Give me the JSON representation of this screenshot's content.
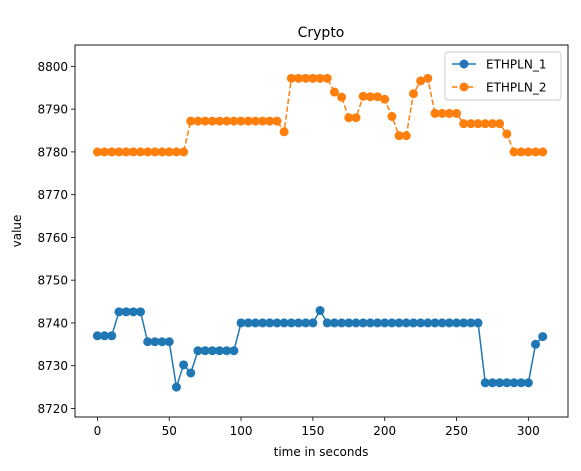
{
  "chart_data": {
    "type": "line",
    "title": "Crypto",
    "xlabel": "time in seconds",
    "ylabel": "value",
    "xlim": [
      -15.6,
      327.6
    ],
    "ylim": [
      8718,
      8805
    ],
    "x_ticks": [
      0,
      50,
      100,
      150,
      200,
      250,
      300
    ],
    "y_ticks": [
      8720,
      8730,
      8740,
      8750,
      8760,
      8770,
      8780,
      8790,
      8800
    ],
    "grid": false,
    "legend_position": "top-right",
    "series": [
      {
        "name": "ETHPLN_1",
        "color": "#1f77b4",
        "line_style": "solid",
        "marker": "circle",
        "x": [
          0,
          5,
          10,
          15,
          20,
          25,
          30,
          35,
          40,
          45,
          50,
          55,
          60,
          65,
          70,
          75,
          80,
          85,
          90,
          95,
          100,
          105,
          110,
          115,
          120,
          125,
          130,
          135,
          140,
          145,
          150,
          155,
          160,
          165,
          170,
          175,
          180,
          185,
          190,
          195,
          200,
          205,
          210,
          215,
          220,
          225,
          230,
          235,
          240,
          245,
          250,
          255,
          260,
          265,
          270,
          275,
          280,
          285,
          290,
          295,
          300,
          305,
          310
        ],
        "y": [
          8737,
          8737,
          8737,
          8742.6,
          8742.6,
          8742.6,
          8742.6,
          8735.6,
          8735.6,
          8735.6,
          8735.6,
          8725,
          8730.2,
          8728.3,
          8733.5,
          8733.5,
          8733.5,
          8733.5,
          8733.5,
          8733.5,
          8740,
          8740,
          8740,
          8740,
          8740,
          8740,
          8740,
          8740,
          8740,
          8740,
          8740,
          8742.9,
          8740,
          8740,
          8740,
          8740,
          8740,
          8740,
          8740,
          8740,
          8740,
          8740,
          8740,
          8740,
          8740,
          8740,
          8740,
          8740,
          8740,
          8740,
          8740,
          8740,
          8740,
          8740,
          8726,
          8726,
          8726,
          8726,
          8726,
          8726,
          8726,
          8735,
          8736.8
        ]
      },
      {
        "name": "ETHPLN_2",
        "color": "#ff7f0e",
        "line_style": "dashed",
        "marker": "circle",
        "x": [
          0,
          5,
          10,
          15,
          20,
          25,
          30,
          35,
          40,
          45,
          50,
          55,
          60,
          65,
          70,
          75,
          80,
          85,
          90,
          95,
          100,
          105,
          110,
          115,
          120,
          125,
          130,
          135,
          140,
          145,
          150,
          155,
          160,
          165,
          170,
          175,
          180,
          185,
          190,
          195,
          200,
          205,
          210,
          215,
          220,
          225,
          230,
          235,
          240,
          245,
          250,
          255,
          260,
          265,
          270,
          275,
          280,
          285,
          290,
          295,
          300,
          305,
          310
        ],
        "y": [
          8780,
          8780,
          8780,
          8780,
          8780,
          8780,
          8780,
          8780,
          8780,
          8780,
          8780,
          8780,
          8780,
          8787.2,
          8787.2,
          8787.2,
          8787.2,
          8787.2,
          8787.2,
          8787.2,
          8787.2,
          8787.2,
          8787.2,
          8787.2,
          8787.2,
          8787.2,
          8784.7,
          8797.2,
          8797.2,
          8797.2,
          8797.2,
          8797.2,
          8797.2,
          8794,
          8792.8,
          8788,
          8788,
          8793,
          8792.9,
          8792.9,
          8792.3,
          8788.3,
          8783.8,
          8783.8,
          8793.6,
          8796.6,
          8797.2,
          8789,
          8789,
          8789,
          8789,
          8786.6,
          8786.6,
          8786.6,
          8786.6,
          8786.6,
          8786.6,
          8784.2,
          8780,
          8780,
          8780,
          8780,
          8780
        ]
      }
    ]
  }
}
